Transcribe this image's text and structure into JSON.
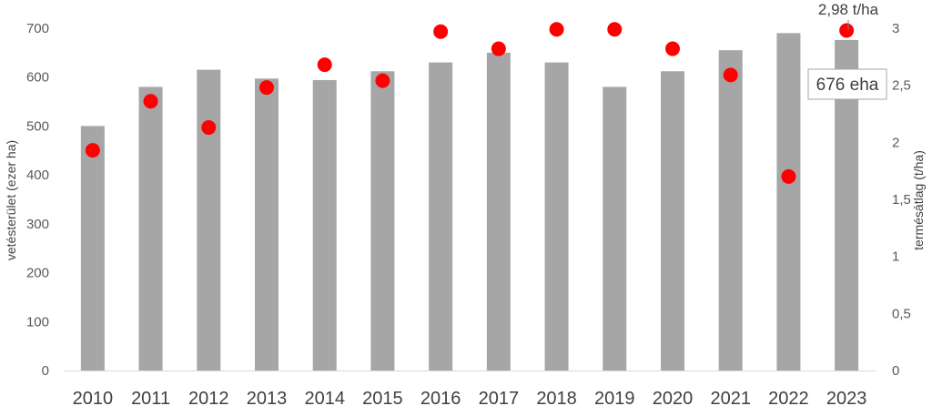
{
  "chart_data": {
    "type": "bar",
    "categories": [
      "2010",
      "2011",
      "2012",
      "2013",
      "2014",
      "2015",
      "2016",
      "2017",
      "2018",
      "2019",
      "2020",
      "2021",
      "2022",
      "2023"
    ],
    "series": [
      {
        "kind": "bar",
        "axis": "left",
        "values": [
          500,
          580,
          615,
          597,
          594,
          612,
          630,
          650,
          630,
          580,
          612,
          655,
          690,
          676
        ],
        "color": "#a6a6a6"
      },
      {
        "kind": "scatter",
        "axis": "right",
        "values": [
          1.93,
          2.36,
          2.13,
          2.48,
          2.68,
          2.54,
          2.97,
          2.82,
          2.99,
          2.99,
          2.82,
          2.59,
          1.7,
          2.98
        ],
        "color": "#ff0000"
      }
    ],
    "ylabel": "vetésterület (ezer ha)",
    "y2label": "termésátlag (t/ha)",
    "ylim": [
      0,
      700
    ],
    "y2lim": [
      0,
      3
    ],
    "yticks": [
      "0",
      "100",
      "200",
      "300",
      "400",
      "500",
      "600",
      "700"
    ],
    "y2ticks": [
      "0",
      "0,5",
      "1",
      "1,5",
      "2",
      "2,5",
      "3"
    ],
    "grid": false,
    "annotations": {
      "point_label": "2,98 t/ha",
      "bar_label": "676 eha"
    }
  }
}
